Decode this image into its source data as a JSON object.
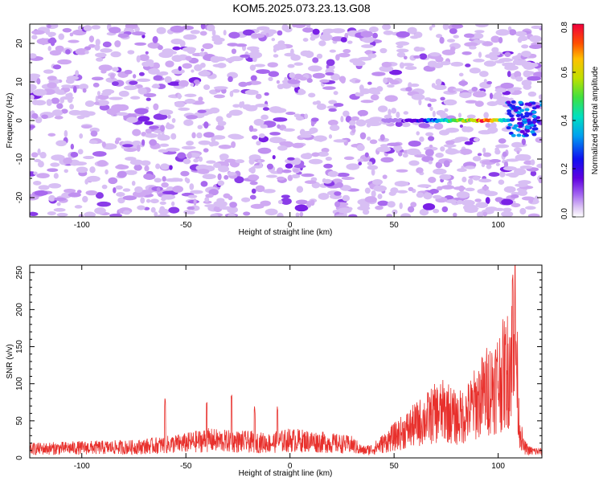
{
  "title": "KOM5.2025.073.23.13.G08",
  "chart_data": [
    {
      "type": "heatmap",
      "title": "KOM5.2025.073.23.13.G08",
      "xlabel": "Height of straight line (km)",
      "ylabel": "Frequency (Hz)",
      "xlim": [
        -125,
        121
      ],
      "ylim": [
        -25,
        25
      ],
      "xticks": [
        "-100",
        "-50",
        "0",
        "50",
        "100"
      ],
      "yticks": [
        "20",
        "10",
        "0",
        "-10",
        "-20"
      ],
      "colorbar": {
        "label": "Normalized spectral amplitude",
        "range": [
          0,
          0.8
        ],
        "ticks": [
          "0.0",
          "0.2",
          "0.4",
          "0.6",
          "0.8"
        ]
      },
      "features": {
        "background_amplitude": 0.05,
        "signal_line": {
          "frequency_hz": 0,
          "x_range_km": [
            45,
            105
          ],
          "peak_amplitude": 0.8,
          "peak_x_km": 95
        }
      }
    },
    {
      "type": "line",
      "xlabel": "Height of straight line (km)",
      "ylabel": "SNR (v/v)",
      "xlim": [
        -125,
        121
      ],
      "ylim": [
        0,
        260
      ],
      "xticks": [
        "-100",
        "-50",
        "0",
        "50",
        "100"
      ],
      "yticks": [
        "0",
        "50",
        "100",
        "150",
        "200",
        "250"
      ],
      "color": "#e8302c",
      "series": [
        {
          "envelope_x": [
            -125,
            -100,
            -75,
            -60,
            -50,
            -40,
            -30,
            -20,
            -10,
            0,
            10,
            20,
            30,
            35,
            40,
            50,
            60,
            70,
            75,
            80,
            85,
            90,
            95,
            100,
            105,
            107,
            108,
            110,
            112,
            115,
            121
          ],
          "envelope_y": [
            15,
            17,
            18,
            22,
            25,
            30,
            28,
            27,
            25,
            30,
            28,
            25,
            22,
            12,
            15,
            35,
            55,
            75,
            80,
            65,
            75,
            95,
            115,
            130,
            150,
            200,
            240,
            60,
            20,
            12,
            10
          ],
          "peaks": [
            [
              -60,
              80
            ],
            [
              -40,
              85
            ],
            [
              -28,
              88
            ],
            [
              -17,
              70
            ],
            [
              -6,
              70
            ],
            [
              107,
              260
            ]
          ]
        }
      ]
    }
  ]
}
